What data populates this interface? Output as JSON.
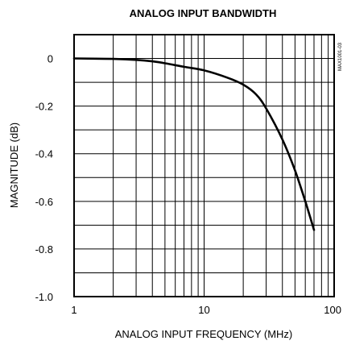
{
  "chart_data": {
    "type": "line",
    "title": "ANALOG INPUT BANDWIDTH",
    "xlabel": "ANALOG INPUT FREQUENCY (MHz)",
    "ylabel": "MAGNITUDE (dB)",
    "x_scale": "log",
    "xlim": [
      1,
      100
    ],
    "ylim": [
      -1.0,
      0.1
    ],
    "x_tick_labels": [
      "1",
      "10",
      "100"
    ],
    "y_tick_labels": [
      "0",
      "-0.2",
      "-0.4",
      "-0.6",
      "-0.8",
      "-1.0"
    ],
    "grid": true,
    "series": [
      {
        "x": [
          1,
          2,
          3,
          4,
          5,
          7,
          10,
          15,
          20,
          25,
          30,
          40,
          50,
          60,
          70
        ],
        "y": [
          0.0,
          -0.002,
          -0.006,
          -0.012,
          -0.02,
          -0.035,
          -0.05,
          -0.08,
          -0.11,
          -0.15,
          -0.21,
          -0.34,
          -0.47,
          -0.6,
          -0.72
        ],
        "color": "#000000"
      }
    ]
  },
  "side_label": "MAX1001-03"
}
